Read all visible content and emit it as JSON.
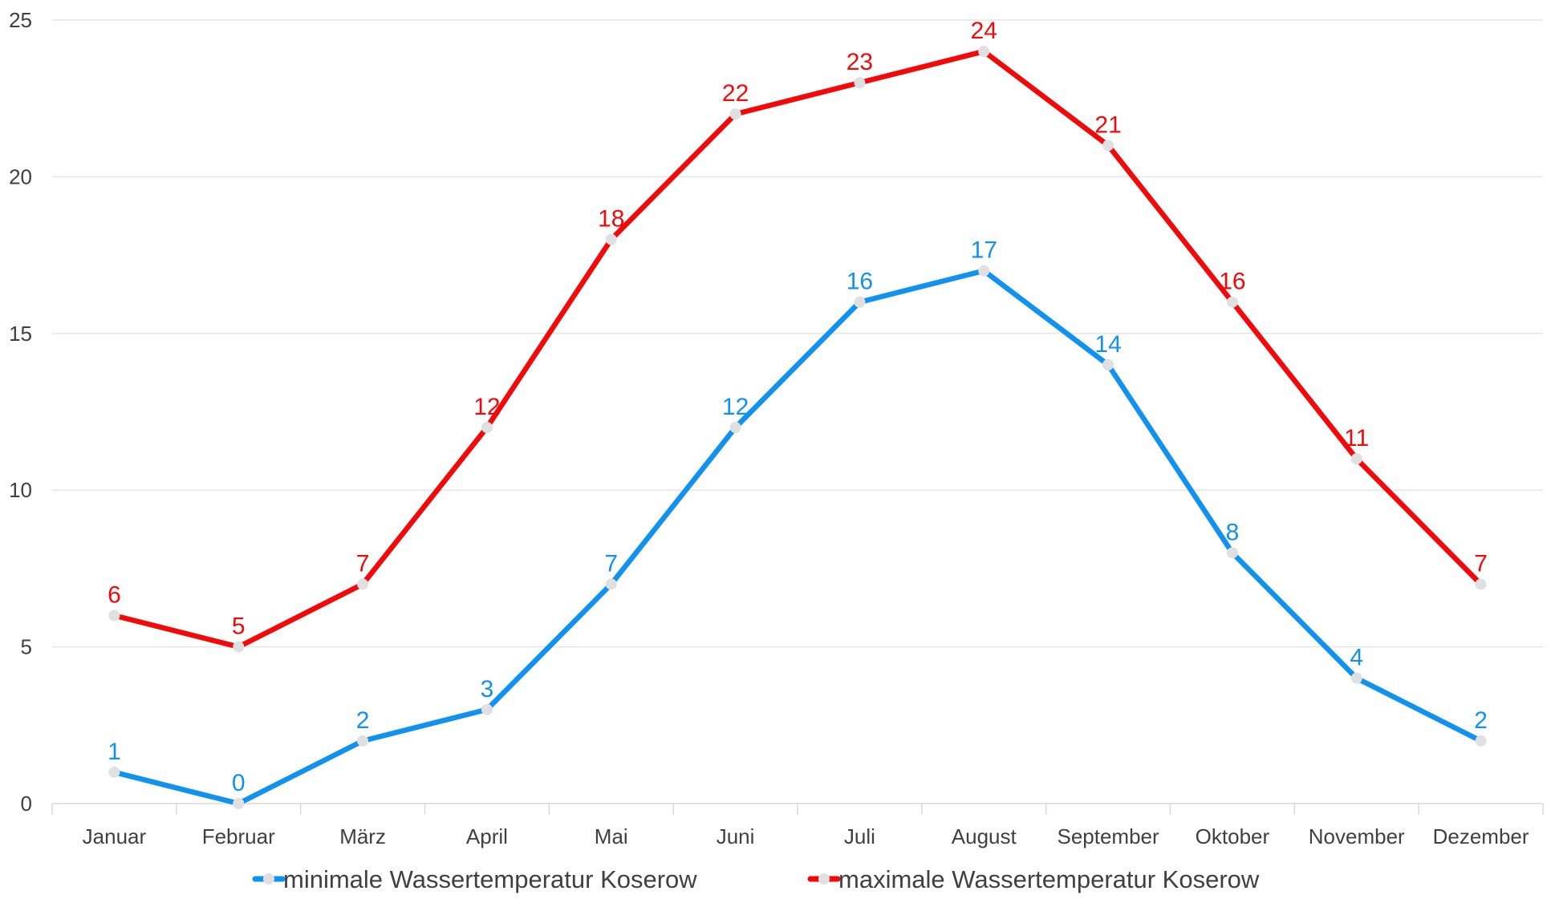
{
  "chart_data": {
    "type": "line",
    "categories": [
      "Januar",
      "Februar",
      "März",
      "April",
      "Mai",
      "Juni",
      "Juli",
      "August",
      "September",
      "Oktober",
      "November",
      "Dezember"
    ],
    "series": [
      {
        "name": "minimale Wassertemperatur Koserow",
        "color": "#1192ee",
        "values": [
          1,
          0,
          2,
          3,
          7,
          12,
          16,
          17,
          14,
          8,
          4,
          2
        ]
      },
      {
        "name": "maximale Wassertemperatur Koserow",
        "color": "#f20a0a",
        "values": [
          6,
          5,
          7,
          12,
          18,
          22,
          23,
          24,
          21,
          16,
          11,
          7
        ]
      }
    ],
    "ylim": [
      0,
      25
    ],
    "yticks": [
      0,
      5,
      10,
      15,
      20,
      25
    ],
    "grid": true,
    "data_labels": true,
    "legend": "bottom",
    "marker_color": "#e0e0e0",
    "gridline_color": "#e6e6e6"
  }
}
